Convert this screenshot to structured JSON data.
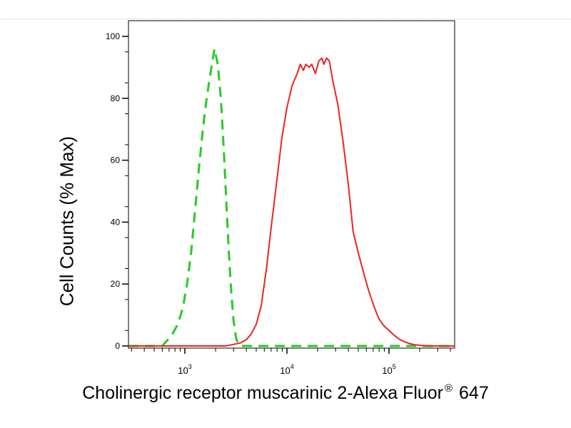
{
  "chart_data": {
    "type": "line",
    "title": "",
    "ylabel": "Cell Counts (% Max)",
    "xlabel_main": "Cholinergic receptor muscarinic 2-Alexa Fluor",
    "xlabel_mark": "®",
    "xlabel_tail": " 647",
    "xscale": "log",
    "xlim": [
      280,
      440000
    ],
    "ylim": [
      0,
      102
    ],
    "yticks": [
      0,
      20,
      40,
      60,
      80,
      100
    ],
    "xticks": [
      {
        "value": 1000,
        "base": "10",
        "exp": "3"
      },
      {
        "value": 10000,
        "base": "10",
        "exp": "4"
      },
      {
        "value": 100000,
        "base": "10",
        "exp": "5"
      }
    ],
    "grid": false,
    "legend": "none",
    "series": [
      {
        "color": "#22cc22",
        "style": "dashed",
        "x": [
          280,
          600,
          680,
          760,
          850,
          950,
          1050,
          1150,
          1260,
          1380,
          1500,
          1620,
          1740,
          1860,
          1950,
          2100,
          2250,
          2400,
          2550,
          2700,
          2850,
          3000,
          3200,
          3500,
          5000,
          20000,
          100000,
          440000
        ],
        "y": [
          0,
          0,
          2,
          4,
          7,
          12,
          20,
          30,
          44,
          58,
          70,
          79,
          86,
          92,
          96,
          91,
          80,
          64,
          46,
          30,
          17,
          8,
          2,
          0,
          0,
          0,
          0,
          0
        ]
      },
      {
        "color": "#ee2222",
        "style": "solid",
        "x": [
          280,
          2500,
          3000,
          3500,
          4000,
          4500,
          5000,
          5600,
          6300,
          7100,
          8000,
          8900,
          10000,
          11200,
          12600,
          13500,
          14500,
          15300,
          16500,
          17500,
          19000,
          20500,
          22000,
          23000,
          24500,
          26000,
          28000,
          31500,
          35500,
          40000,
          44500,
          50000,
          56000,
          63000,
          71000,
          79000,
          89000,
          100000,
          112000,
          126000,
          141000,
          158000,
          178000,
          200000,
          250000,
          440000
        ],
        "y": [
          0,
          0,
          0.5,
          1,
          2,
          4,
          7,
          13,
          25,
          40,
          54,
          67,
          77,
          84,
          88,
          91,
          89,
          91,
          90,
          91,
          88,
          92,
          93,
          91,
          93,
          92,
          86,
          78,
          66,
          52,
          37,
          30,
          24,
          18,
          13,
          9,
          6.5,
          5,
          3.5,
          2.2,
          1.4,
          0.8,
          0.4,
          0.2,
          0,
          0
        ]
      }
    ]
  }
}
